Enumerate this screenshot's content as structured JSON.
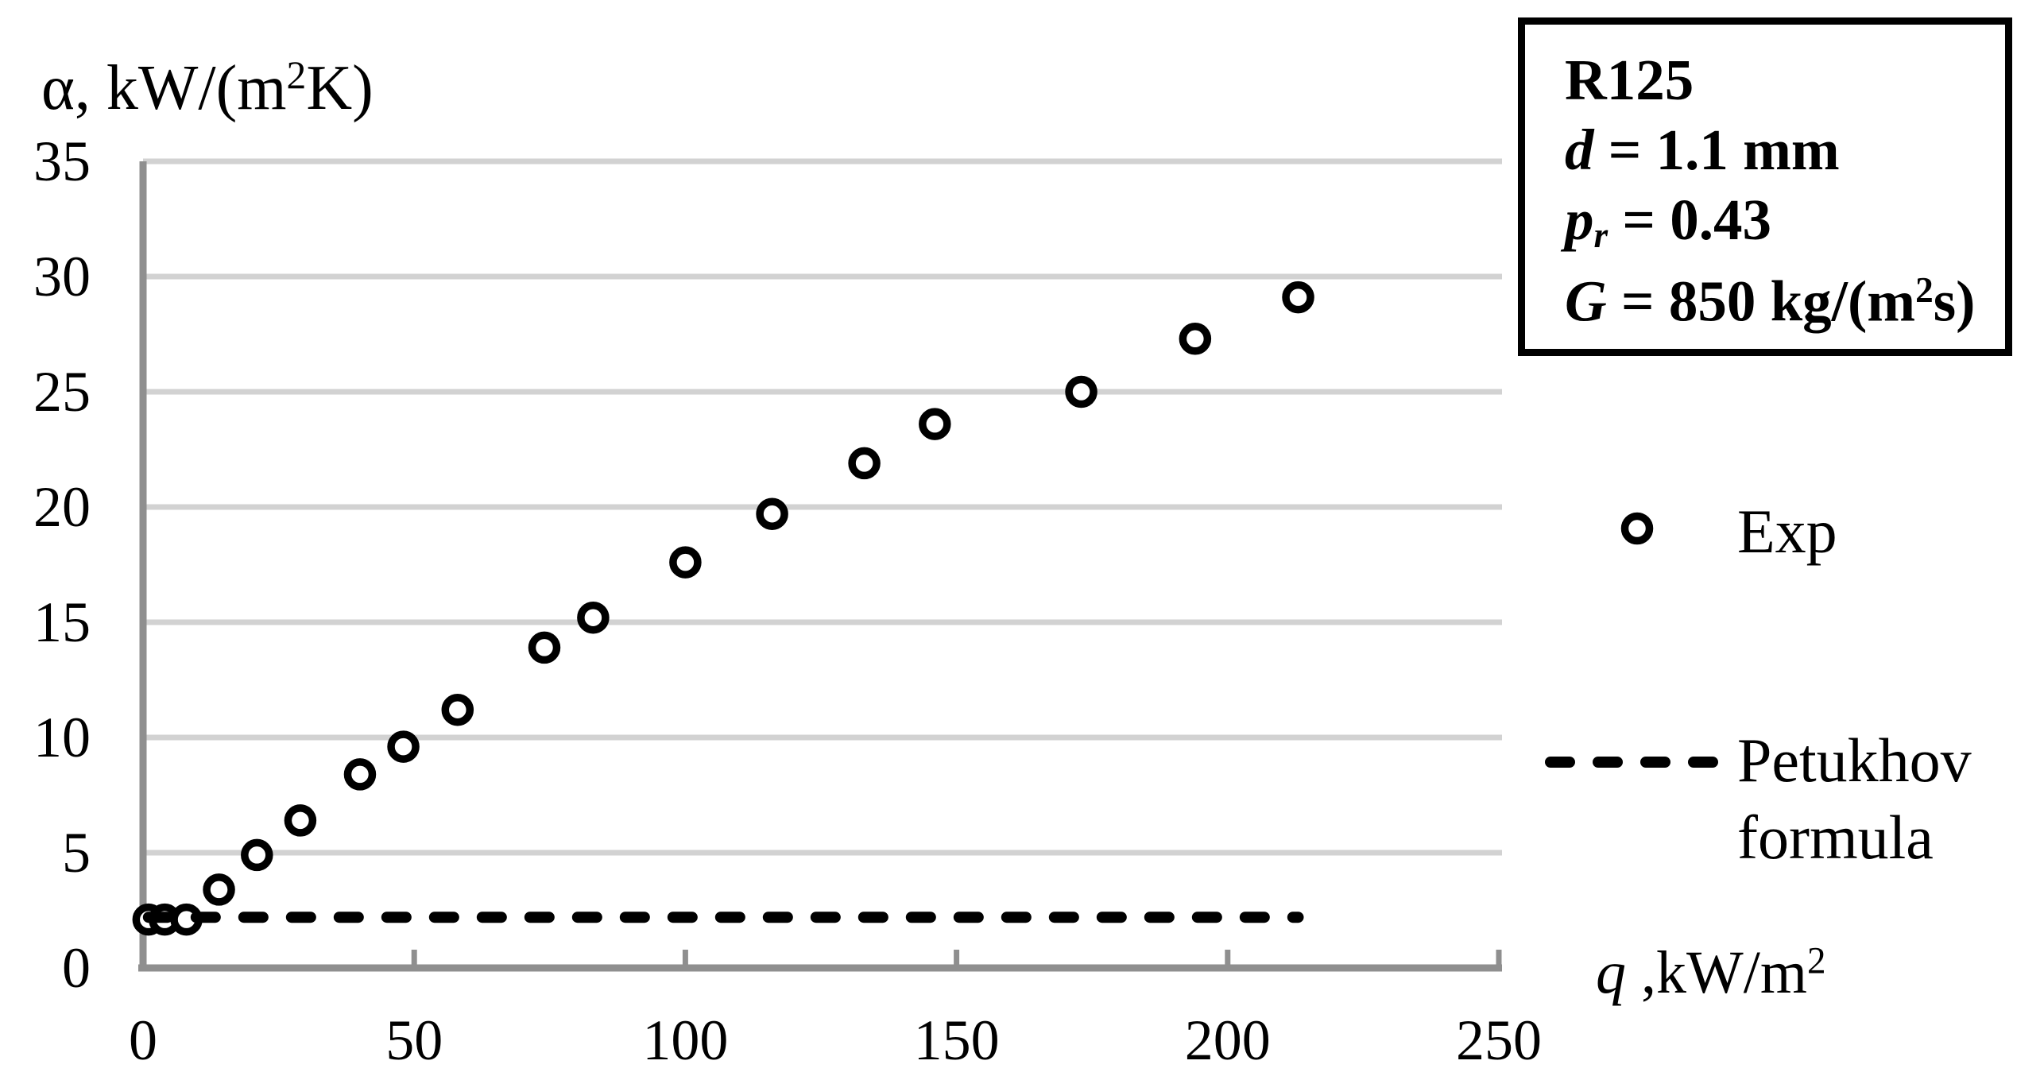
{
  "chart_data": {
    "type": "scatter",
    "title": "",
    "xlabel": "q ,kW/m²",
    "ylabel": "α, kW/(m²K)",
    "xlim": [
      0,
      250
    ],
    "ylim": [
      0,
      35
    ],
    "x_ticks": [
      0,
      50,
      100,
      150,
      200,
      250
    ],
    "y_ticks": [
      0,
      5,
      10,
      15,
      20,
      25,
      30,
      35
    ],
    "grid": "horizontal-only",
    "legend_position": "right",
    "series": [
      {
        "name": "Exp",
        "type": "scatter",
        "marker": "open-circle",
        "color": "#000000",
        "x": [
          1,
          4,
          8,
          14,
          21,
          29,
          40,
          48,
          58,
          74,
          83,
          100,
          116,
          133,
          146,
          173,
          194,
          213
        ],
        "y": [
          2.1,
          2.1,
          2.1,
          3.4,
          4.9,
          6.4,
          8.4,
          9.6,
          11.2,
          13.9,
          15.2,
          17.6,
          19.7,
          21.9,
          23.6,
          25.0,
          27.3,
          29.1
        ]
      },
      {
        "name": "Petukhov formula",
        "type": "line",
        "line_style": "dashed",
        "color": "#000000",
        "x": [
          1,
          213
        ],
        "y": [
          2.2,
          2.2
        ]
      }
    ]
  },
  "axis_titles": {
    "y_segments": [
      {
        "t": "α, kW/(m"
      },
      {
        "t": "2",
        "sup": true
      },
      {
        "t": "K)"
      }
    ],
    "x_segments": [
      {
        "t": "q",
        "i": true
      },
      {
        "t": " ,kW/m"
      },
      {
        "t": "2",
        "sup": true
      }
    ]
  },
  "annotation_box": {
    "lines": [
      {
        "segments": [
          {
            "t": "R125"
          }
        ]
      },
      {
        "segments": [
          {
            "t": "d",
            "i": true
          },
          {
            "t": " = 1.1 mm"
          }
        ]
      },
      {
        "segments": [
          {
            "t": "p",
            "i": true
          },
          {
            "t": "r",
            "i": true,
            "sub": true
          },
          {
            "t": " = 0.43"
          }
        ]
      },
      {
        "segments": [
          {
            "t": "G",
            "i": true
          },
          {
            "t": " = 850 kg/(m"
          },
          {
            "t": "2",
            "sup": true
          },
          {
            "t": "s)"
          }
        ]
      }
    ],
    "lines_plain": [
      "R125",
      "d = 1.1 mm",
      "pr = 0.43",
      "G = 850 kg/(m²s)"
    ]
  },
  "legend": {
    "entries": [
      {
        "marker": "open-circle",
        "label_lines": [
          "Exp"
        ]
      },
      {
        "marker": "dashed-line",
        "label_lines": [
          "Petukhov",
          "formula"
        ]
      }
    ]
  },
  "colors": {
    "background": "#ffffff",
    "text": "#000000",
    "gridline": "#d2d2d2",
    "axis_line": "#8f8f8f",
    "marker_stroke": "#000000",
    "marker_fill": "#ffffff",
    "dashed_line": "#000000",
    "box_border": "#000000"
  }
}
